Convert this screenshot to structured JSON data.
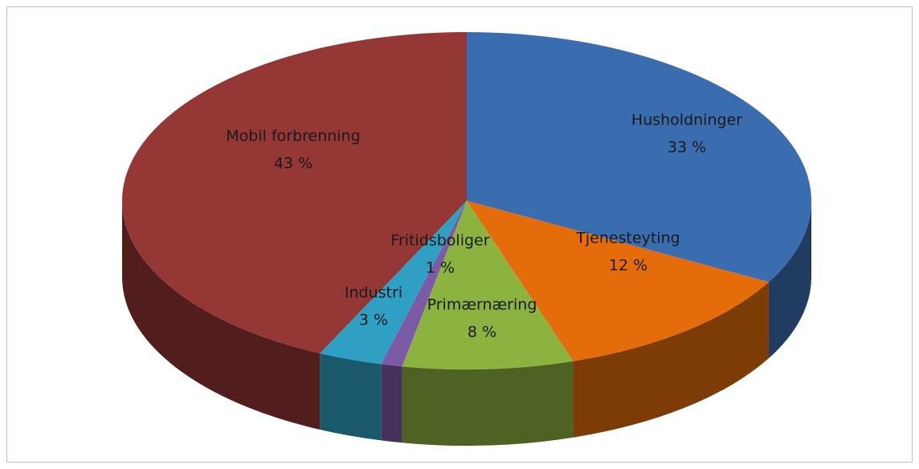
{
  "chart_data": {
    "type": "pie3d",
    "categories": [
      "Husholdninger",
      "Tjenesteyting",
      "Primærnæring",
      "Fritidsboliger",
      "Industri",
      "Mobil forbrenning"
    ],
    "values": [
      33,
      12,
      8,
      1,
      3,
      43
    ],
    "value_labels": [
      "33 %",
      "12 %",
      "8 %",
      "1 %",
      "3 %",
      "43 %"
    ],
    "colors": [
      "#3a6db0",
      "#e46c0a",
      "#8cb23f",
      "#7b5aa6",
      "#2fa0c4",
      "#953735"
    ]
  }
}
